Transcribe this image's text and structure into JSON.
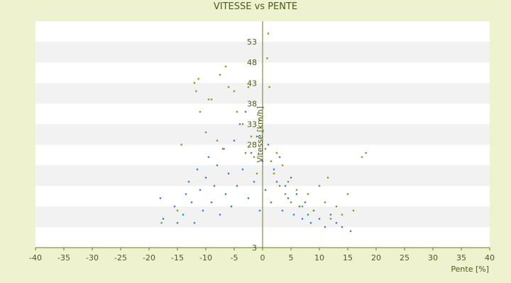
{
  "chart_data": {
    "type": "scatter",
    "title": "VITESSE vs PENTE",
    "xlabel": "Pente [%]",
    "ylabel": "Vitesse [km/h]",
    "xlim": [
      -40,
      40
    ],
    "ylim": [
      3,
      58
    ],
    "x_ticks": [
      -40,
      -35,
      -30,
      -25,
      -20,
      -15,
      -10,
      -5,
      0,
      5,
      10,
      15,
      20,
      25,
      30,
      35,
      40
    ],
    "y_ticks": [
      3,
      8,
      13,
      18,
      23,
      28,
      33,
      38,
      43,
      48,
      53
    ],
    "y_tick_labels": [
      "3",
      "",
      "",
      "",
      "",
      "28",
      "33",
      "38",
      "43",
      "48",
      "53"
    ],
    "grid": "horizontal bands",
    "colors": {
      "background": "#eef2cf",
      "plot_band_light": "#ffffff",
      "plot_band_dark": "#f2f2f2",
      "axis": "#6b7a22",
      "text": "#4d5a1a"
    },
    "series": [
      {
        "color": "#3a86cc",
        "points": [
          [
            -18,
            15
          ],
          [
            -17.5,
            10
          ],
          [
            -15.5,
            13
          ],
          [
            -15,
            9
          ],
          [
            -14,
            11
          ],
          [
            -13.5,
            16
          ],
          [
            -13,
            19
          ],
          [
            -12.5,
            14
          ],
          [
            -12,
            9
          ],
          [
            -11.5,
            22
          ],
          [
            -11,
            17
          ],
          [
            -10.5,
            12
          ],
          [
            -10,
            20
          ],
          [
            -9.5,
            25
          ],
          [
            -9,
            14
          ],
          [
            -8.5,
            18
          ],
          [
            -8,
            23
          ],
          [
            -7.5,
            11
          ],
          [
            -7,
            27
          ],
          [
            -6.5,
            16
          ],
          [
            -6,
            21
          ],
          [
            -5.5,
            13
          ],
          [
            -5,
            29
          ],
          [
            -4.5,
            18
          ],
          [
            -4,
            33
          ],
          [
            -3.5,
            22
          ],
          [
            -3,
            36
          ],
          [
            -2.5,
            15
          ],
          [
            -2,
            26
          ],
          [
            -1.5,
            19
          ],
          [
            -1,
            30
          ],
          [
            -0.5,
            12
          ],
          [
            0,
            24
          ],
          [
            0.5,
            17
          ],
          [
            1,
            28
          ],
          [
            1.5,
            14
          ],
          [
            2,
            22
          ],
          [
            2.5,
            19
          ],
          [
            3,
            25
          ],
          [
            3.5,
            12
          ],
          [
            4,
            18
          ],
          [
            4.5,
            15
          ],
          [
            5,
            20
          ],
          [
            5.5,
            11
          ],
          [
            6,
            16
          ],
          [
            6.5,
            13
          ],
          [
            7,
            10
          ],
          [
            7.5,
            14
          ],
          [
            8,
            11
          ],
          [
            8.5,
            9
          ],
          [
            9,
            12
          ],
          [
            10,
            10
          ],
          [
            11,
            8
          ],
          [
            12,
            11
          ],
          [
            13,
            9
          ],
          [
            14,
            8
          ],
          [
            15.5,
            7
          ]
        ]
      },
      {
        "color": "#8f9a1f",
        "points": [
          [
            -17.8,
            9
          ],
          [
            -15,
            12
          ],
          [
            -14.3,
            28
          ],
          [
            -12,
            43
          ],
          [
            -11.7,
            41
          ],
          [
            -11.3,
            44
          ],
          [
            -11,
            36
          ],
          [
            -10,
            31
          ],
          [
            -9.5,
            39
          ],
          [
            -9,
            39
          ],
          [
            -8,
            29
          ],
          [
            -7.5,
            45
          ],
          [
            -6.8,
            27
          ],
          [
            -6.5,
            47
          ],
          [
            -6,
            42
          ],
          [
            -5,
            41
          ],
          [
            -4.5,
            36
          ],
          [
            -3.5,
            33
          ],
          [
            -3,
            26
          ],
          [
            -2.5,
            42
          ],
          [
            -2,
            30
          ],
          [
            -1.5,
            25
          ],
          [
            -1,
            21
          ],
          [
            -0.5,
            34
          ],
          [
            0,
            31
          ],
          [
            0.5,
            27
          ],
          [
            0.8,
            49
          ],
          [
            1,
            55
          ],
          [
            1.2,
            42
          ],
          [
            1.5,
            24
          ],
          [
            2,
            21
          ],
          [
            2.5,
            26
          ],
          [
            3,
            18
          ],
          [
            3.5,
            23
          ],
          [
            4,
            16
          ],
          [
            4.5,
            19
          ],
          [
            5,
            14
          ],
          [
            6,
            17
          ],
          [
            7,
            13
          ],
          [
            8,
            16
          ],
          [
            9,
            12
          ],
          [
            10,
            18
          ],
          [
            11,
            14
          ],
          [
            11.5,
            20
          ],
          [
            12,
            10
          ],
          [
            13,
            13
          ],
          [
            14,
            11
          ],
          [
            15,
            16
          ],
          [
            16,
            12
          ],
          [
            17.5,
            25
          ],
          [
            18.2,
            26
          ]
        ]
      }
    ]
  }
}
